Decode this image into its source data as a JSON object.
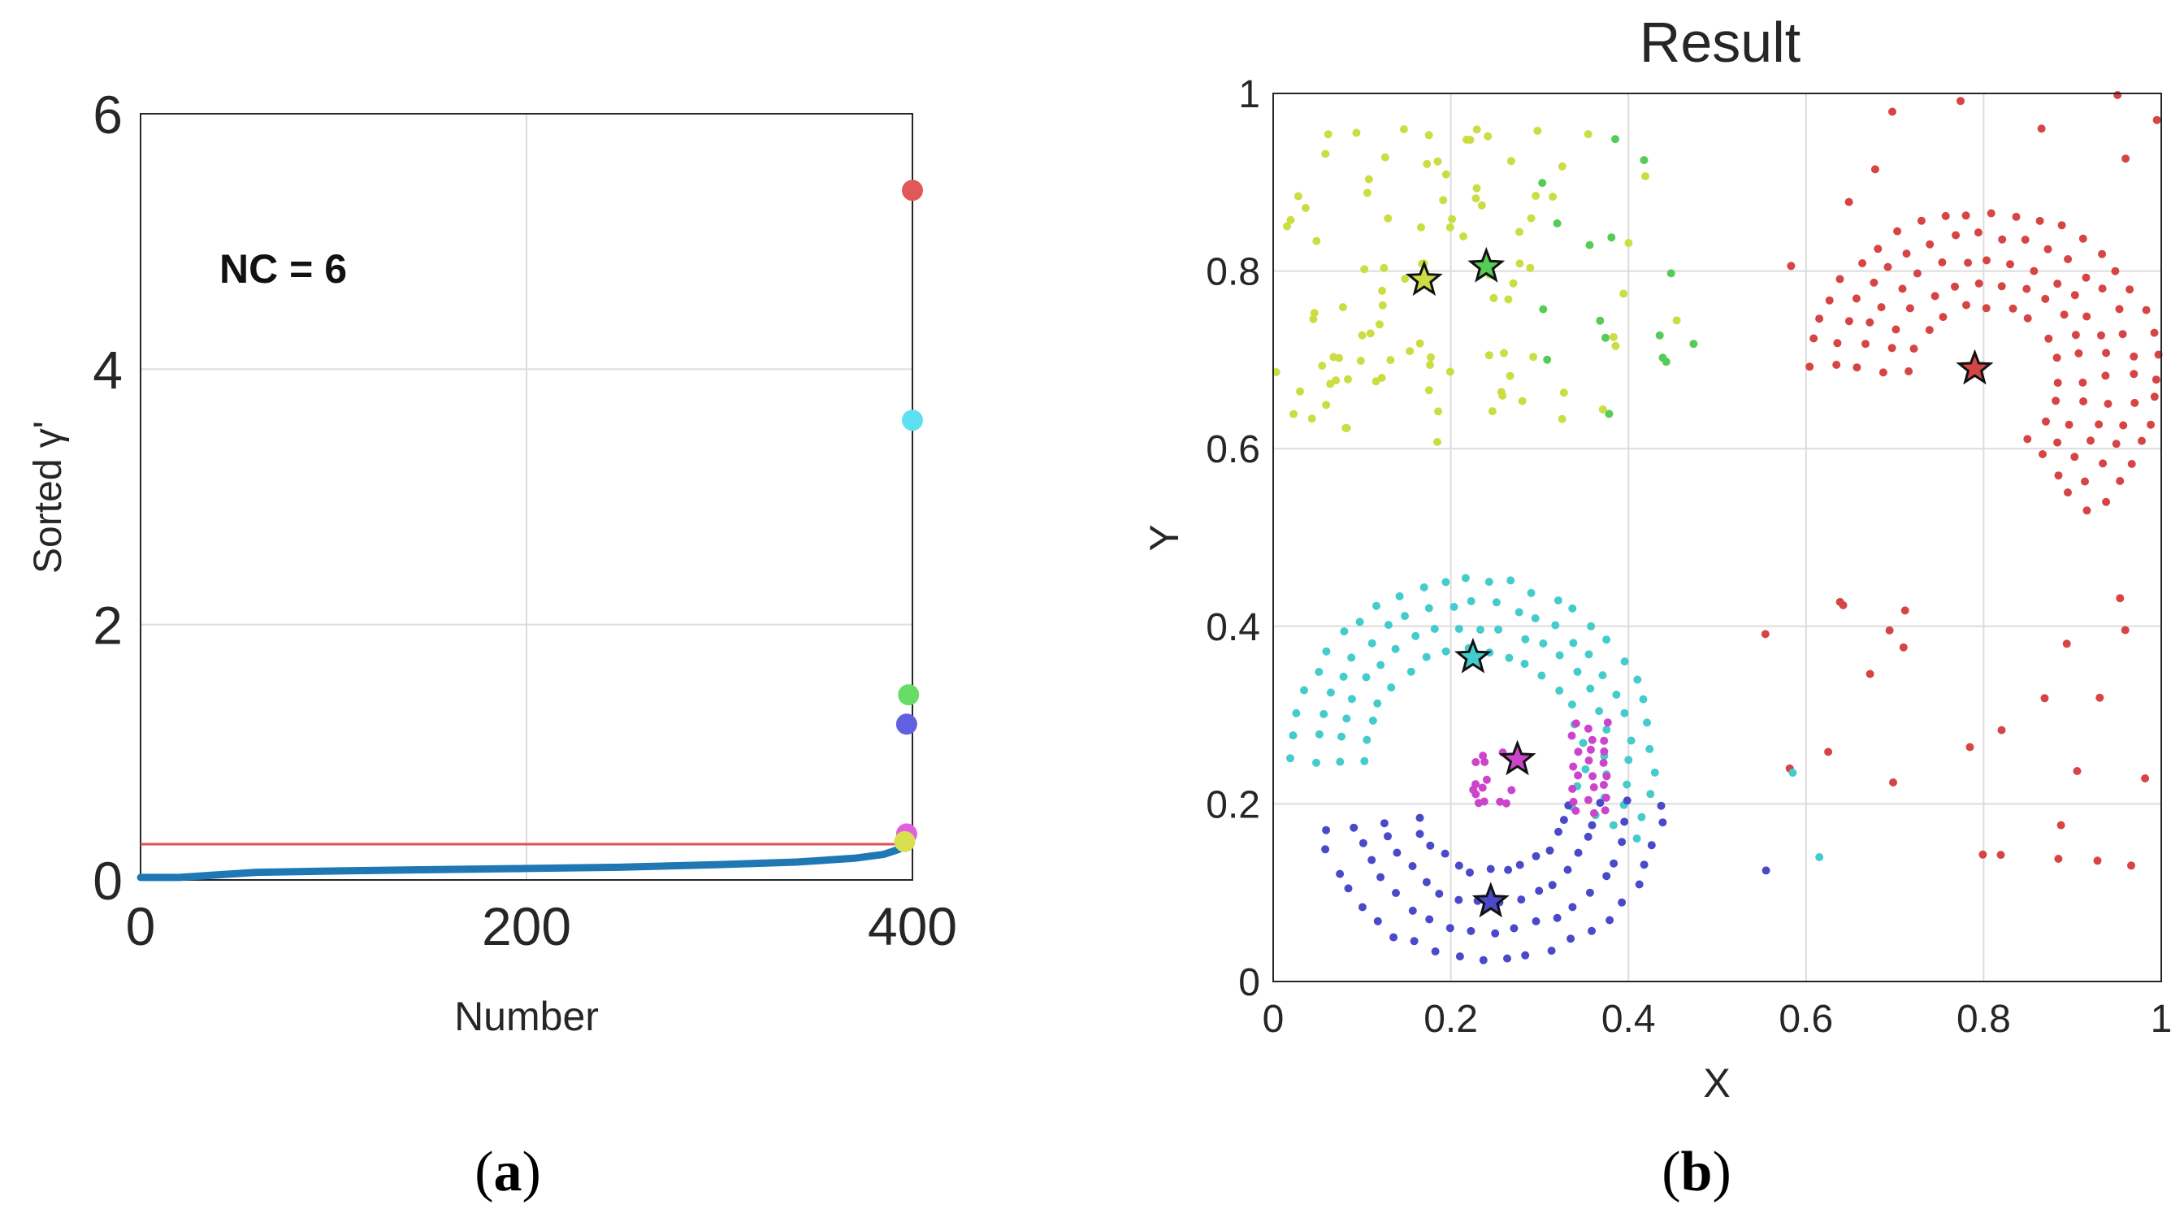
{
  "chart_data": [
    {
      "type": "scatter",
      "panel": "a",
      "caption": {
        "open": "(",
        "letter": "a",
        "close": ")"
      },
      "title": "",
      "xlabel": "Number",
      "ylabel": "Sorted γ'",
      "xlim": [
        0,
        400
      ],
      "ylim": [
        0,
        6
      ],
      "xticks": [
        0,
        200,
        400
      ],
      "yticks": [
        0,
        2,
        4,
        6
      ],
      "grid": true,
      "annotation": "NC = 6",
      "threshold": {
        "y": 0.28,
        "color": "#e05050"
      },
      "sorted_curve": {
        "color": "#1f77b4",
        "points": [
          [
            0,
            0.02
          ],
          [
            20,
            0.02
          ],
          [
            40,
            0.04
          ],
          [
            60,
            0.06
          ],
          [
            100,
            0.07
          ],
          [
            150,
            0.08
          ],
          [
            200,
            0.09
          ],
          [
            250,
            0.1
          ],
          [
            300,
            0.12
          ],
          [
            340,
            0.14
          ],
          [
            370,
            0.17
          ],
          [
            385,
            0.2
          ],
          [
            393,
            0.24
          ]
        ]
      },
      "centers": [
        {
          "x": 400,
          "y": 5.4,
          "color": "#e05858"
        },
        {
          "x": 400,
          "y": 3.6,
          "color": "#5ee0f0"
        },
        {
          "x": 398,
          "y": 1.45,
          "color": "#66dd66"
        },
        {
          "x": 397,
          "y": 1.22,
          "color": "#6060e0"
        },
        {
          "x": 397,
          "y": 0.36,
          "color": "#e060e0"
        },
        {
          "x": 396,
          "y": 0.3,
          "color": "#d8e050"
        }
      ]
    },
    {
      "type": "scatter",
      "panel": "b",
      "caption": {
        "open": "(",
        "letter": "b",
        "close": ")"
      },
      "title": "Result",
      "xlabel": "X",
      "ylabel": "Y",
      "xlim": [
        0,
        1
      ],
      "ylim": [
        0,
        1
      ],
      "xticks": [
        "0",
        "0.2",
        "0.4",
        "0.6",
        "0.8",
        "1"
      ],
      "yticks": [
        "0",
        "0.2",
        "0.4",
        "0.6",
        "0.8",
        "1"
      ],
      "grid": true,
      "clusters": [
        {
          "name": "yellow",
          "color": "#ccdd44",
          "center": [
            0.17,
            0.79
          ]
        },
        {
          "name": "green",
          "color": "#55cc55",
          "center": [
            0.24,
            0.805
          ]
        },
        {
          "name": "red",
          "color": "#d64545",
          "center": [
            0.79,
            0.69
          ]
        },
        {
          "name": "cyan",
          "color": "#44cccc",
          "center": [
            0.225,
            0.365
          ]
        },
        {
          "name": "magenta",
          "color": "#cc44cc",
          "center": [
            0.275,
            0.25
          ]
        },
        {
          "name": "blue",
          "color": "#4a4ac8",
          "center": [
            0.245,
            0.09
          ]
        }
      ]
    }
  ]
}
